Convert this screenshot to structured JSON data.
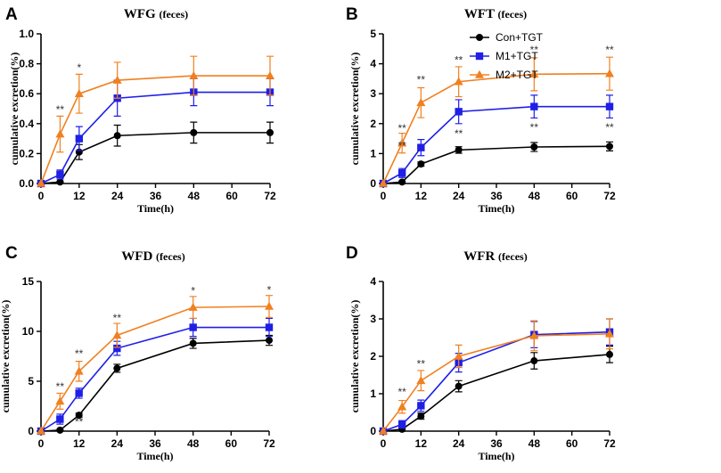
{
  "legend": {
    "entries": [
      {
        "name": "Con+TGT",
        "color": "#000000",
        "marker": "circle"
      },
      {
        "name": "M1+TGT",
        "color": "#1f1fe6",
        "marker": "square"
      },
      {
        "name": "M2+TGT",
        "color": "#f08020",
        "marker": "triangle"
      }
    ]
  },
  "chart_data": [
    {
      "type": "line",
      "panel": "A",
      "title": "WFG",
      "title_suffix": "(feces)",
      "xlabel": "Time(h)",
      "ylabel": "cumulative excretion(%)",
      "xlim": [
        0,
        72
      ],
      "ylim": [
        0,
        1.0
      ],
      "x_ticks": [
        0,
        12,
        24,
        36,
        48,
        60,
        72
      ],
      "y_ticks": [
        0,
        0.2,
        0.4,
        0.6,
        0.8,
        1.0
      ],
      "y_tick_labels": [
        "0.0",
        "0.2",
        "0.4",
        "0.6",
        "0.8",
        "1.0"
      ],
      "x": [
        0,
        6,
        12,
        24,
        48,
        72
      ],
      "series": [
        {
          "name": "Con+TGT",
          "values": [
            0,
            0.01,
            0.21,
            0.32,
            0.34,
            0.34
          ],
          "errors": [
            0,
            0.005,
            0.05,
            0.07,
            0.07,
            0.07
          ]
        },
        {
          "name": "M1+TGT",
          "values": [
            0,
            0.06,
            0.3,
            0.57,
            0.61,
            0.61
          ],
          "errors": [
            0,
            0.03,
            0.08,
            0.12,
            0.09,
            0.09
          ]
        },
        {
          "name": "M2+TGT",
          "values": [
            0,
            0.33,
            0.6,
            0.69,
            0.72,
            0.72
          ],
          "errors": [
            0,
            0.12,
            0.13,
            0.12,
            0.13,
            0.13
          ]
        }
      ],
      "annotations": [
        {
          "x": 6,
          "y": 0.47,
          "text": "**"
        },
        {
          "x": 12,
          "y": 0.75,
          "text": "*"
        }
      ]
    },
    {
      "type": "line",
      "panel": "B",
      "title": "WFT",
      "title_suffix": "(feces)",
      "xlabel": "Time(h)",
      "ylabel": "cumulative excretion(%)",
      "xlim": [
        0,
        72
      ],
      "ylim": [
        0,
        5
      ],
      "x_ticks": [
        0,
        12,
        24,
        36,
        48,
        60,
        72
      ],
      "y_ticks": [
        0,
        1,
        2,
        3,
        4,
        5
      ],
      "y_tick_labels": [
        "0",
        "1",
        "2",
        "3",
        "4",
        "5"
      ],
      "x": [
        0,
        6,
        12,
        24,
        48,
        72
      ],
      "series": [
        {
          "name": "Con+TGT",
          "values": [
            0,
            0.05,
            0.65,
            1.12,
            1.22,
            1.24
          ],
          "errors": [
            0,
            0.03,
            0.07,
            0.11,
            0.15,
            0.15
          ]
        },
        {
          "name": "M1+TGT",
          "values": [
            0,
            0.35,
            1.2,
            2.4,
            2.57,
            2.57
          ],
          "errors": [
            0,
            0.15,
            0.27,
            0.4,
            0.38,
            0.38
          ]
        },
        {
          "name": "M2+TGT",
          "values": [
            0,
            1.35,
            2.7,
            3.4,
            3.65,
            3.67
          ],
          "errors": [
            0,
            0.33,
            0.5,
            0.5,
            0.55,
            0.55
          ]
        }
      ],
      "annotations": [
        {
          "x": 6,
          "y": 1.15,
          "text": "**"
        },
        {
          "x": 6,
          "y": 1.72,
          "text": "**"
        },
        {
          "x": 12,
          "y": 3.35,
          "text": "**"
        },
        {
          "x": 24,
          "y": 4.0,
          "text": "**"
        },
        {
          "x": 24,
          "y": 1.55,
          "text": "**"
        },
        {
          "x": 48,
          "y": 4.35,
          "text": "**"
        },
        {
          "x": 48,
          "y": 1.75,
          "text": "**"
        },
        {
          "x": 72,
          "y": 4.35,
          "text": "**"
        },
        {
          "x": 72,
          "y": 1.75,
          "text": "**"
        }
      ]
    },
    {
      "type": "line",
      "panel": "C",
      "title": "WFD",
      "title_suffix": "(feces)",
      "xlabel": "Time(h)",
      "ylabel": "cumulative excretion(%)",
      "xlim": [
        0,
        72
      ],
      "ylim": [
        0,
        15
      ],
      "x_ticks": [
        0,
        12,
        24,
        36,
        48,
        60,
        72
      ],
      "y_ticks": [
        0,
        5,
        10,
        15
      ],
      "y_tick_labels": [
        "0",
        "5",
        "10",
        "15"
      ],
      "x": [
        0,
        6,
        12,
        24,
        48,
        72
      ],
      "series": [
        {
          "name": "Con+TGT",
          "values": [
            0,
            0.1,
            1.6,
            6.3,
            8.8,
            9.1
          ],
          "errors": [
            0,
            0.05,
            0.2,
            0.4,
            0.5,
            0.5
          ]
        },
        {
          "name": "M1+TGT",
          "values": [
            0,
            1.2,
            3.8,
            8.3,
            10.4,
            10.4
          ],
          "errors": [
            0,
            0.5,
            0.5,
            0.7,
            0.9,
            0.9
          ]
        },
        {
          "name": "M2+TGT",
          "values": [
            0,
            3.0,
            6.0,
            9.6,
            12.4,
            12.5
          ],
          "errors": [
            0,
            0.8,
            1.0,
            1.2,
            1.1,
            1.1
          ]
        }
      ],
      "annotations": [
        {
          "x": 6,
          "y": 4.1,
          "text": "**"
        },
        {
          "x": 12,
          "y": 7.4,
          "text": "**"
        },
        {
          "x": 12,
          "y": 0.6,
          "text": "**"
        },
        {
          "x": 24,
          "y": 11.0,
          "text": "**"
        },
        {
          "x": 48,
          "y": 13.7,
          "text": "*"
        },
        {
          "x": 72,
          "y": 13.8,
          "text": "*"
        }
      ]
    },
    {
      "type": "line",
      "panel": "D",
      "title": "WFR",
      "title_suffix": "(feces)",
      "xlabel": "Time(h)",
      "ylabel": "cumulative excretion(%)",
      "xlim": [
        0,
        72
      ],
      "ylim": [
        0,
        4
      ],
      "x_ticks": [
        0,
        12,
        24,
        36,
        48,
        60,
        72
      ],
      "y_ticks": [
        0,
        1,
        2,
        3,
        4
      ],
      "y_tick_labels": [
        "0",
        "1",
        "2",
        "3",
        "4"
      ],
      "x": [
        0,
        6,
        12,
        24,
        48,
        72
      ],
      "series": [
        {
          "name": "Con+TGT",
          "values": [
            0,
            0.05,
            0.4,
            1.2,
            1.88,
            2.05
          ],
          "errors": [
            0,
            0.03,
            0.08,
            0.15,
            0.22,
            0.22
          ]
        },
        {
          "name": "M1+TGT",
          "values": [
            0,
            0.18,
            0.68,
            1.83,
            2.58,
            2.65
          ],
          "errors": [
            0,
            0.1,
            0.15,
            0.25,
            0.35,
            0.35
          ]
        },
        {
          "name": "M2+TGT",
          "values": [
            0,
            0.65,
            1.35,
            2.0,
            2.55,
            2.6
          ],
          "errors": [
            0,
            0.17,
            0.27,
            0.3,
            0.4,
            0.4
          ]
        }
      ],
      "annotations": [
        {
          "x": 6,
          "y": 0.95,
          "text": "**"
        },
        {
          "x": 12,
          "y": 1.7,
          "text": "**"
        }
      ]
    }
  ]
}
